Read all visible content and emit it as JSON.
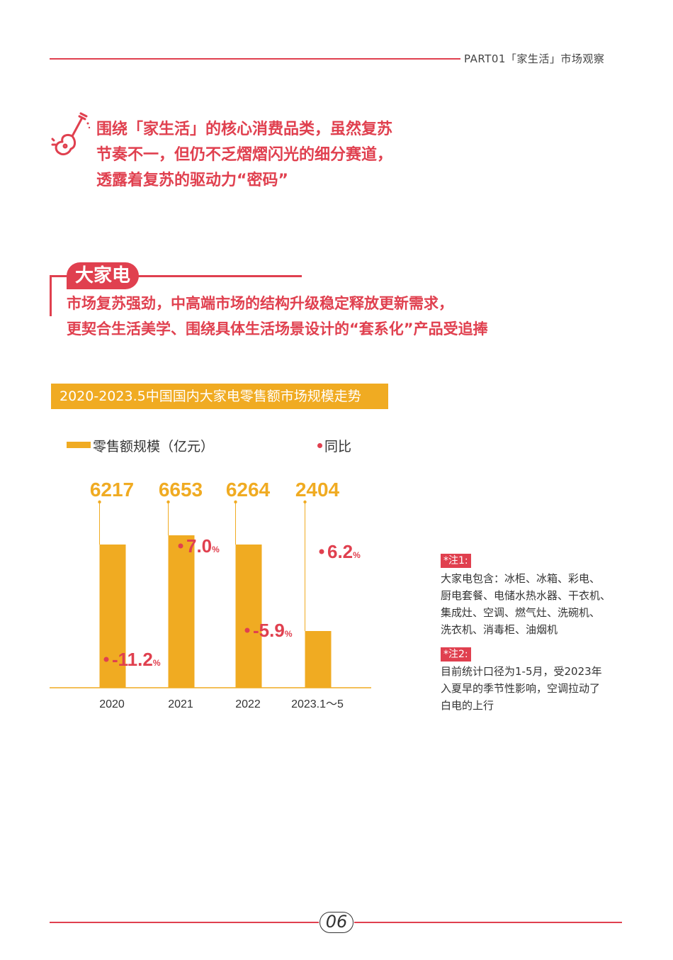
{
  "header": {
    "text": "PART01「家生活」市场观察"
  },
  "intro": {
    "icon": "guitar-icon",
    "lines": [
      "围绕「家生活」的核心消费品类，虽然复苏",
      "节奏不一，但仍不乏熠熠闪光的细分赛道，",
      "透露着复苏的驱动力“密码”"
    ]
  },
  "section": {
    "title": "大家电",
    "lines": [
      "市场复苏强劲，中高端市场的结构升级稳定释放更新需求，",
      "更契合生活美学、围绕具体生活场景设计的“套系化”产品受追捧"
    ]
  },
  "chart_title": "2020-2023.5中国国内大家电零售额市场规模走势",
  "legend": {
    "bar_label": "零售额规模（亿元）",
    "dot_label": "同比"
  },
  "colors": {
    "accent": "#e0404f",
    "bar": "#f0ab22"
  },
  "chart_data": {
    "type": "bar",
    "categories": [
      "2020",
      "2021",
      "2022",
      "2023.1～5"
    ],
    "series": [
      {
        "name": "零售额规模（亿元）",
        "values": [
          6217,
          6653,
          6264,
          2404
        ]
      },
      {
        "name": "同比",
        "values": [
          -11.2,
          7.0,
          -5.9,
          6.2
        ],
        "unit": "%"
      }
    ],
    "value_labels": [
      "6217",
      "6653",
      "6264",
      "2404"
    ],
    "pct_labels": [
      "-11.2",
      "7.0",
      "-5.9",
      "6.2"
    ],
    "pct_unit": "%",
    "ylim": [
      0,
      7000
    ],
    "grid": false,
    "legend_position": "top"
  },
  "notes": [
    {
      "tag": "*注1:",
      "lines": [
        "大家电包含：冰柜、冰箱、彩电、",
        "厨电套餐、电储水热水器、干衣机、",
        "集成灶、空调、燃气灶、洗碗机、",
        "洗衣机、消毒柜、油烟机"
      ]
    },
    {
      "tag": "*注2:",
      "lines": [
        "目前统计口径为1-5月，受2023年",
        "入夏早的季节性影响，空调拉动了",
        "白电的上行"
      ]
    }
  ],
  "footer": {
    "page": "06"
  }
}
